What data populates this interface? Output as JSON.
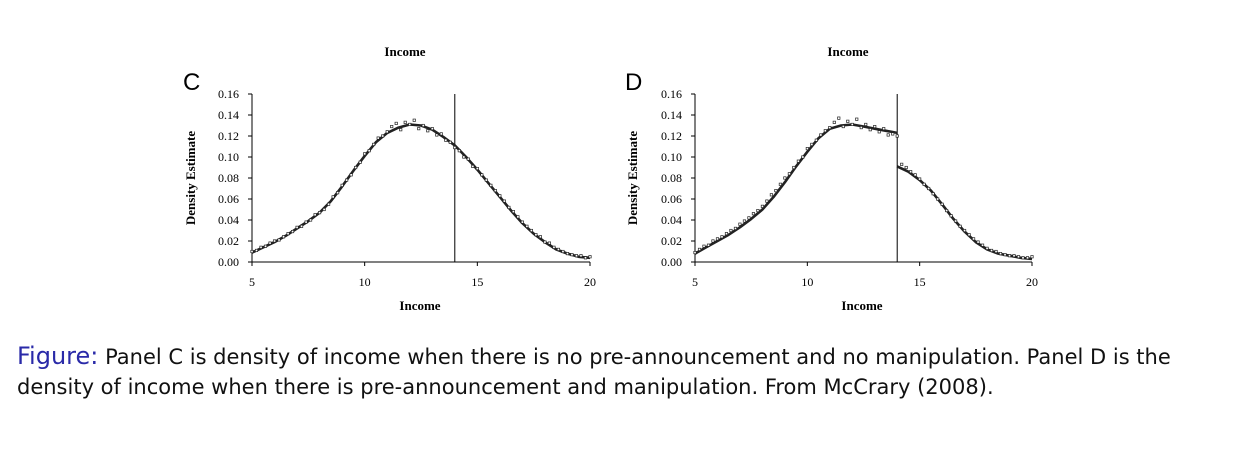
{
  "caption": {
    "prefix": "Figure:",
    "text": "Panel C is density of income when there is no pre-announcement and no manipulation. Panel D is the density of income when there is pre-announcement and manipulation. From McCrary (2008)."
  },
  "chart_data": [
    {
      "type": "scatter",
      "panel_label": "C",
      "title": "Income",
      "xlabel": "Income",
      "ylabel": "Density Estimate",
      "xlim": [
        5,
        20
      ],
      "ylim": [
        0,
        0.16
      ],
      "x_ticks": [
        "5",
        "10",
        "15",
        "20"
      ],
      "y_ticks": [
        "0.16",
        "0.14",
        "0.12",
        "0.10",
        "0.08",
        "0.06",
        "0.04",
        "0.02",
        "0.00"
      ],
      "cutoff": 14,
      "grid": false,
      "series": [
        {
          "kind": "fitted-line",
          "x": [
            5,
            5.5,
            6,
            6.5,
            7,
            7.5,
            8,
            8.5,
            9,
            9.5,
            10,
            10.5,
            11,
            11.5,
            12,
            12.5,
            13,
            13.5,
            14,
            14.5,
            15,
            15.5,
            16,
            16.5,
            17,
            17.5,
            18,
            18.5,
            19,
            19.5,
            20
          ],
          "y": [
            0.009,
            0.014,
            0.019,
            0.025,
            0.032,
            0.039,
            0.047,
            0.058,
            0.072,
            0.087,
            0.101,
            0.114,
            0.123,
            0.128,
            0.131,
            0.13,
            0.126,
            0.119,
            0.111,
            0.1,
            0.088,
            0.075,
            0.062,
            0.049,
            0.037,
            0.027,
            0.019,
            0.012,
            0.008,
            0.005,
            0.004
          ]
        },
        {
          "kind": "scatter-points",
          "x": [
            5.0,
            5.2,
            5.4,
            5.6,
            5.8,
            6.0,
            6.2,
            6.4,
            6.6,
            6.8,
            7.0,
            7.2,
            7.4,
            7.6,
            7.8,
            8.0,
            8.2,
            8.4,
            8.6,
            8.8,
            9.0,
            9.2,
            9.4,
            9.6,
            9.8,
            10.0,
            10.2,
            10.4,
            10.6,
            10.8,
            11.0,
            11.2,
            11.4,
            11.6,
            11.8,
            12.0,
            12.2,
            12.4,
            12.6,
            12.8,
            13.0,
            13.2,
            13.4,
            13.6,
            13.8,
            14.0,
            14.2,
            14.4,
            14.6,
            14.8,
            15.0,
            15.2,
            15.4,
            15.6,
            15.8,
            16.0,
            16.2,
            16.4,
            16.6,
            16.8,
            17.0,
            17.2,
            17.4,
            17.6,
            17.8,
            18.0,
            18.2,
            18.4,
            18.6,
            18.8,
            19.0,
            19.2,
            19.4,
            19.6,
            19.8,
            20.0
          ],
          "y": [
            0.01,
            0.011,
            0.014,
            0.015,
            0.018,
            0.02,
            0.021,
            0.024,
            0.027,
            0.029,
            0.033,
            0.034,
            0.038,
            0.04,
            0.045,
            0.047,
            0.05,
            0.055,
            0.062,
            0.066,
            0.073,
            0.078,
            0.083,
            0.09,
            0.095,
            0.103,
            0.106,
            0.112,
            0.118,
            0.12,
            0.124,
            0.129,
            0.132,
            0.126,
            0.133,
            0.131,
            0.135,
            0.127,
            0.13,
            0.125,
            0.127,
            0.121,
            0.122,
            0.116,
            0.114,
            0.109,
            0.106,
            0.1,
            0.098,
            0.091,
            0.089,
            0.083,
            0.078,
            0.073,
            0.068,
            0.063,
            0.058,
            0.052,
            0.048,
            0.043,
            0.038,
            0.034,
            0.03,
            0.026,
            0.024,
            0.019,
            0.018,
            0.014,
            0.012,
            0.01,
            0.008,
            0.007,
            0.006,
            0.006,
            0.004,
            0.005
          ]
        }
      ]
    },
    {
      "type": "scatter",
      "panel_label": "D",
      "title": "Income",
      "xlabel": "Income",
      "ylabel": "Density Estimate",
      "xlim": [
        5,
        20
      ],
      "ylim": [
        0,
        0.16
      ],
      "x_ticks": [
        "5",
        "10",
        "15",
        "20"
      ],
      "y_ticks": [
        "0.16",
        "0.14",
        "0.12",
        "0.10",
        "0.08",
        "0.06",
        "0.04",
        "0.02",
        "0.00"
      ],
      "cutoff": 14,
      "grid": false,
      "series": [
        {
          "kind": "fitted-line-left",
          "x": [
            5,
            5.5,
            6,
            6.5,
            7,
            7.5,
            8,
            8.5,
            9,
            9.5,
            10,
            10.5,
            11,
            11.5,
            12,
            12.5,
            13,
            13.5,
            14
          ],
          "y": [
            0.008,
            0.014,
            0.02,
            0.026,
            0.033,
            0.041,
            0.05,
            0.062,
            0.076,
            0.091,
            0.105,
            0.118,
            0.127,
            0.13,
            0.131,
            0.129,
            0.127,
            0.125,
            0.123
          ]
        },
        {
          "kind": "fitted-line-right",
          "x": [
            14,
            14.5,
            15,
            15.5,
            16,
            16.5,
            17,
            17.5,
            18,
            18.5,
            19,
            19.5,
            20
          ],
          "y": [
            0.091,
            0.086,
            0.078,
            0.068,
            0.055,
            0.041,
            0.029,
            0.019,
            0.012,
            0.008,
            0.006,
            0.004,
            0.003
          ]
        },
        {
          "kind": "scatter-points",
          "x": [
            5.0,
            5.2,
            5.4,
            5.6,
            5.8,
            6.0,
            6.2,
            6.4,
            6.6,
            6.8,
            7.0,
            7.2,
            7.4,
            7.6,
            7.8,
            8.0,
            8.2,
            8.4,
            8.6,
            8.8,
            9.0,
            9.2,
            9.4,
            9.6,
            9.8,
            10.0,
            10.2,
            10.4,
            10.6,
            10.8,
            11.0,
            11.2,
            11.4,
            11.6,
            11.8,
            12.0,
            12.2,
            12.4,
            12.6,
            12.8,
            13.0,
            13.2,
            13.4,
            13.6,
            13.8,
            14.0,
            14.2,
            14.4,
            14.6,
            14.8,
            15.0,
            15.2,
            15.4,
            15.6,
            15.8,
            16.0,
            16.2,
            16.4,
            16.6,
            16.8,
            17.0,
            17.2,
            17.4,
            17.6,
            17.8,
            18.0,
            18.2,
            18.4,
            18.6,
            18.8,
            19.0,
            19.2,
            19.4,
            19.6,
            19.8,
            20.0
          ],
          "y": [
            0.009,
            0.012,
            0.015,
            0.016,
            0.02,
            0.022,
            0.024,
            0.027,
            0.03,
            0.032,
            0.036,
            0.039,
            0.042,
            0.046,
            0.049,
            0.053,
            0.058,
            0.064,
            0.068,
            0.074,
            0.08,
            0.084,
            0.09,
            0.096,
            0.1,
            0.108,
            0.112,
            0.116,
            0.121,
            0.125,
            0.128,
            0.133,
            0.137,
            0.129,
            0.134,
            0.131,
            0.136,
            0.128,
            0.131,
            0.126,
            0.129,
            0.124,
            0.127,
            0.121,
            0.122,
            0.12,
            0.093,
            0.09,
            0.086,
            0.083,
            0.079,
            0.074,
            0.07,
            0.065,
            0.06,
            0.055,
            0.049,
            0.044,
            0.039,
            0.034,
            0.03,
            0.026,
            0.022,
            0.019,
            0.016,
            0.013,
            0.011,
            0.01,
            0.008,
            0.007,
            0.006,
            0.006,
            0.005,
            0.004,
            0.004,
            0.005
          ]
        }
      ]
    }
  ]
}
